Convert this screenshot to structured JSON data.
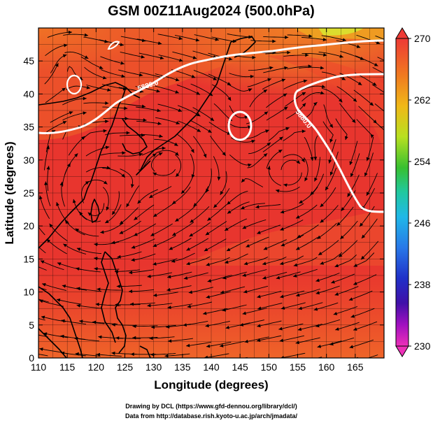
{
  "title": "GSM 00Z11Aug2024 (500.0hPa)",
  "chart_data": {
    "type": "map",
    "xlabel": "Longitude (degrees)",
    "ylabel": "Latitude  (degrees)",
    "xlim": [
      110,
      170
    ],
    "ylim": [
      0,
      50
    ],
    "x_ticks": [
      "110",
      "115",
      "120",
      "125",
      "130",
      "135",
      "140",
      "145",
      "150",
      "155",
      "160",
      "165"
    ],
    "y_ticks": [
      "0",
      "5",
      "10",
      "15",
      "20",
      "25",
      "30",
      "35",
      "40",
      "45"
    ],
    "x_tick_values": [
      110,
      115,
      120,
      125,
      130,
      135,
      140,
      145,
      150,
      155,
      160,
      165
    ],
    "y_tick_values": [
      0,
      5,
      10,
      15,
      20,
      25,
      30,
      35,
      40,
      45
    ],
    "colorbar": {
      "min": 230,
      "max": 270,
      "labels": [
        "270",
        "262",
        "254",
        "246",
        "238",
        "230"
      ],
      "label_values": [
        270,
        262,
        254,
        246,
        238,
        230
      ]
    },
    "contours": [
      {
        "label": "5880.0",
        "lon": 133,
        "lat": 43.5
      },
      {
        "label": "5880.0",
        "lon": 156,
        "lat": 37
      }
    ],
    "vortices": [
      {
        "lon": 145,
        "lat": 37
      },
      {
        "lon": 115,
        "lat": 45
      },
      {
        "lon": 119,
        "lat": 25
      },
      {
        "lon": 133,
        "lat": 29.5
      },
      {
        "lon": 154,
        "lat": 28
      },
      {
        "lon": 158.5,
        "lat": 39
      },
      {
        "lon": 120,
        "lat": 22
      }
    ],
    "colors": {
      "warm_min": "#e8352e",
      "warm_mid": "#ef5a2c",
      "warm_max": "#f08a22",
      "cool_edge": "#d4ee30",
      "contour": "#ffffff",
      "streamline": "#000000"
    }
  },
  "credits": {
    "line1": "Drawing by DCL (https://www.gfd-dennou.org/library/dcl/)",
    "line2": "Data from http://database.rish.kyoto-u.ac.jp/arch/jmadata/"
  }
}
